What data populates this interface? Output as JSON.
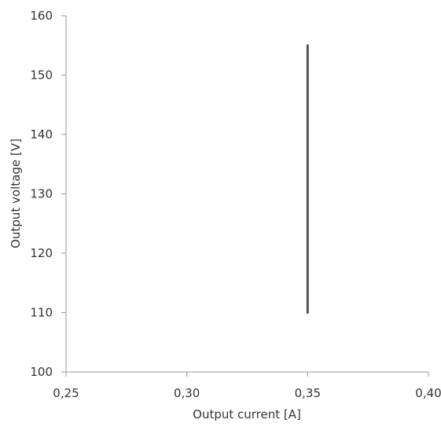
{
  "chart_data": {
    "type": "line",
    "title": "",
    "xlabel": "Output current [A]",
    "ylabel": "Output voltage [V]",
    "xlim": [
      0.25,
      0.4
    ],
    "ylim": [
      100,
      160
    ],
    "x_ticks": [
      0.25,
      0.3,
      0.35,
      0.4
    ],
    "x_tick_labels": [
      "0,25",
      "0,30",
      "0,35",
      "0,40"
    ],
    "y_ticks": [
      100,
      110,
      120,
      130,
      140,
      150,
      160
    ],
    "y_tick_labels": [
      "100",
      "110",
      "120",
      "130",
      "140",
      "150",
      "160"
    ],
    "grid": false,
    "legend": "none",
    "series": [
      {
        "color": "#555555",
        "points": [
          {
            "x": 0.35,
            "y": 110
          },
          {
            "x": 0.35,
            "y": 155
          }
        ]
      }
    ]
  }
}
